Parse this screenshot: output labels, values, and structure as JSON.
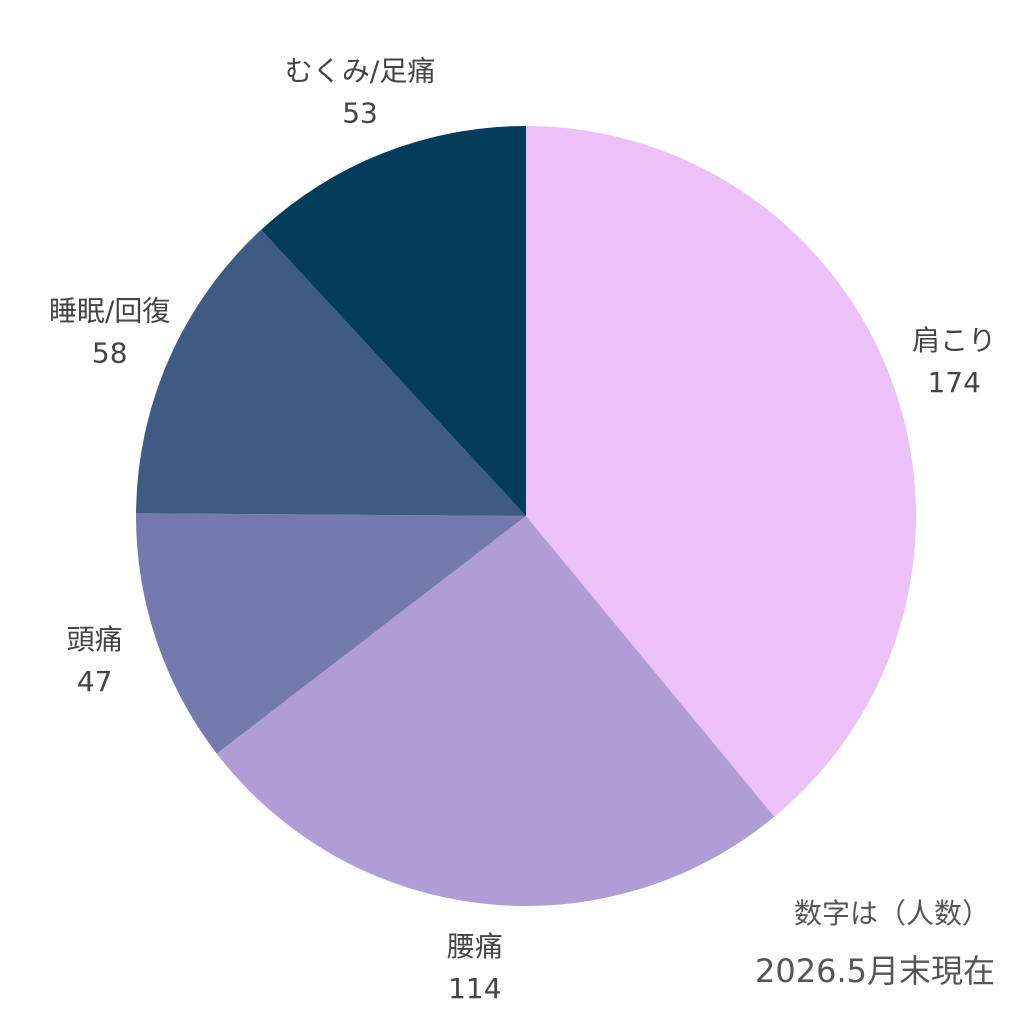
{
  "chart_data": {
    "type": "pie",
    "categories": [
      "肩こり",
      "腰痛",
      "頭痛",
      "睡眠/回復",
      "むくみ/足痛"
    ],
    "values": [
      174,
      114,
      47,
      58,
      53
    ],
    "colors": [
      "#ecc0f8",
      "#b09dd6",
      "#747aad",
      "#3e5b83",
      "#033d5a"
    ],
    "notes": [
      "数字は（人数）",
      "2026.5月末現在"
    ]
  }
}
